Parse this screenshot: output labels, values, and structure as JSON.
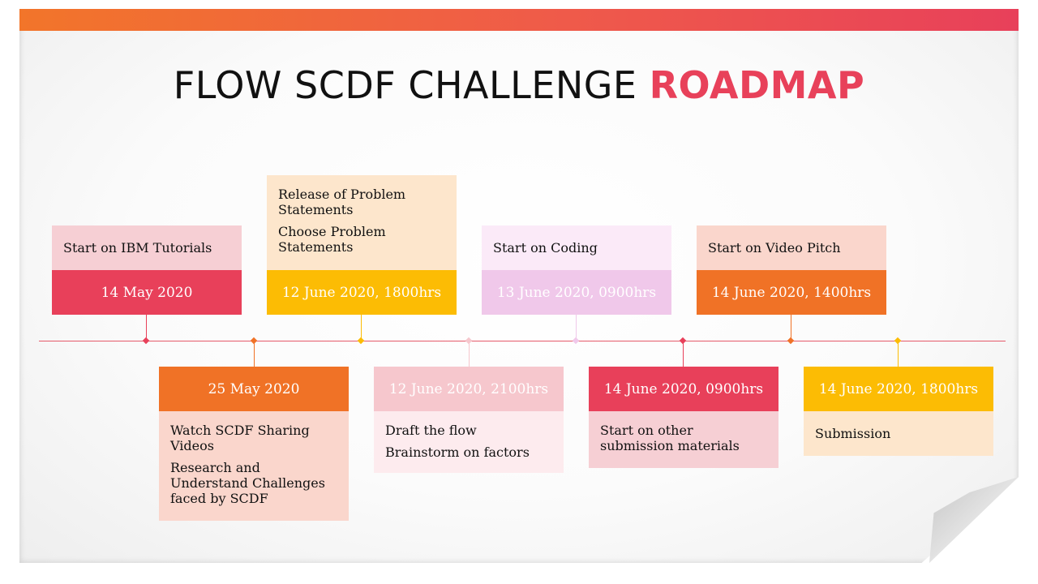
{
  "title": {
    "main": "FLOW SCDF CHALLENGE ",
    "accent": "ROADMAP"
  },
  "colors": {
    "red": "#e8405a",
    "orange": "#f07226",
    "yellow": "#fcbc04",
    "pink_light": "#f0c8ea",
    "pink": "#f6c7cd",
    "peach": "#fde2c9",
    "salmon": "#fad6cc"
  },
  "milestones": [
    {
      "date": "14 May 2020",
      "lines": [
        "Start on IBM Tutorials"
      ]
    },
    {
      "date": "25 May 2020",
      "lines": [
        "Watch SCDF Sharing Videos",
        "Research and Understand Challenges faced by SCDF"
      ]
    },
    {
      "date": "12 June 2020, 1800hrs",
      "lines": [
        "Release of Problem Statements",
        "Choose Problem Statements"
      ]
    },
    {
      "date": "12 June 2020, 2100hrs",
      "lines": [
        "Draft the flow",
        "Brainstorm on factors"
      ]
    },
    {
      "date": "13 June 2020, 0900hrs",
      "lines": [
        "Start on Coding"
      ]
    },
    {
      "date": "14 June 2020, 0900hrs",
      "lines": [
        "Start on other submission materials"
      ]
    },
    {
      "date": "14 June 2020, 1400hrs",
      "lines": [
        "Start on Video Pitch"
      ]
    },
    {
      "date": "14 June 2020, 1800hrs",
      "lines": [
        "Submission"
      ]
    }
  ]
}
